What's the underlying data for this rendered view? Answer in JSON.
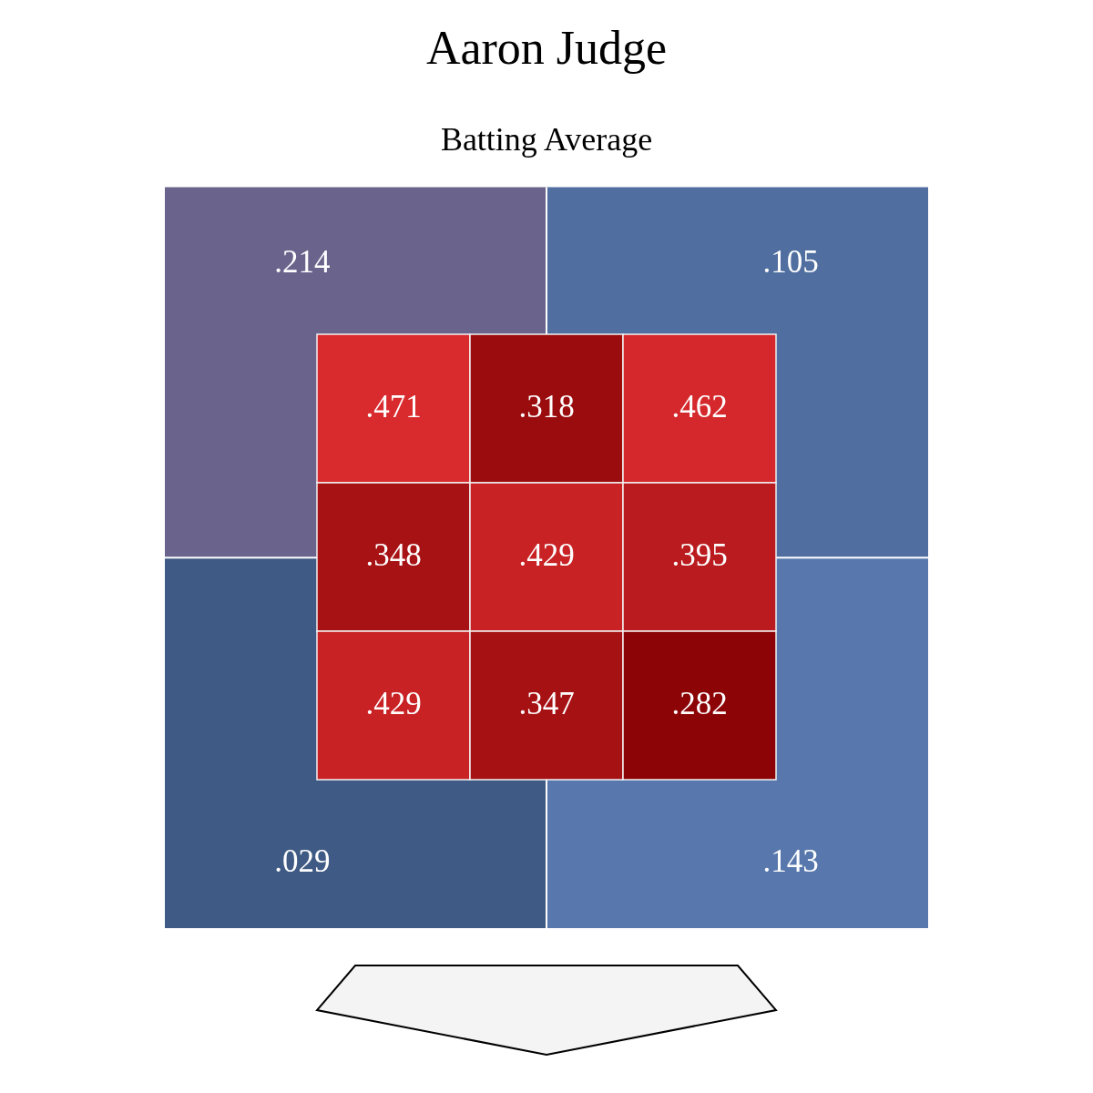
{
  "chart_data": [
    {
      "type": "heatmap",
      "title": "Aaron Judge",
      "subtitle": "Batting Average",
      "categories": [
        null,
        null
      ],
      "y_categories": [
        null,
        null
      ],
      "cells": [
        [
          0.214,
          0.105
        ],
        [
          0.029,
          0.143
        ]
      ],
      "cell_labels": [
        [
          ".214",
          ".105"
        ],
        [
          ".029",
          ".143"
        ]
      ]
    },
    {
      "type": "heatmap",
      "categories": [
        null,
        null,
        null
      ],
      "y_categories": [
        null,
        null,
        null
      ],
      "cells": [
        [
          0.471,
          0.318,
          0.462
        ],
        [
          0.348,
          0.429,
          0.395
        ],
        [
          0.429,
          0.347,
          0.282
        ]
      ],
      "cell_labels": [
        [
          ".471",
          ".318",
          ".462"
        ],
        [
          ".348",
          ".429",
          ".395"
        ],
        [
          ".429",
          ".347",
          ".282"
        ]
      ]
    }
  ]
}
